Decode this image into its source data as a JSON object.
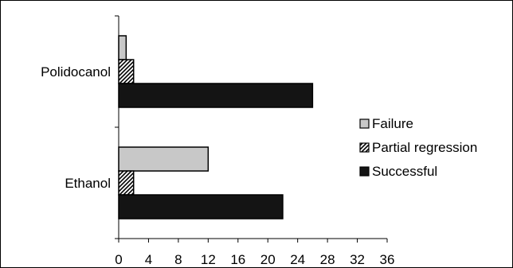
{
  "chart_data": {
    "type": "bar",
    "orientation": "horizontal",
    "categories": [
      "Polidocanol",
      "Ethanol"
    ],
    "series": [
      {
        "name": "Failure",
        "values": [
          1,
          12
        ],
        "color": "#c8c8c8",
        "pattern": "solid"
      },
      {
        "name": "Partial regression",
        "values": [
          2,
          2
        ],
        "color": "#ffffff",
        "pattern": "diagonal-hatch"
      },
      {
        "name": "Successful",
        "values": [
          26,
          22
        ],
        "color": "#141414",
        "pattern": "solid"
      }
    ],
    "xlim": [
      0,
      36
    ],
    "xticks": [
      0,
      4,
      8,
      12,
      16,
      20,
      24,
      28,
      32,
      36
    ],
    "legend_position": "right",
    "grid": false
  }
}
